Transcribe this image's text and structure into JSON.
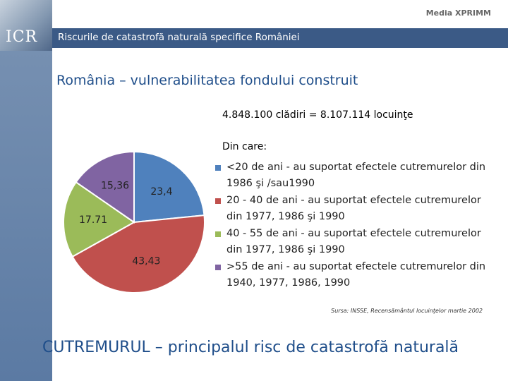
{
  "header": {
    "title": "Riscurile de catastrofă naturală specifice României",
    "logo": "ICR",
    "brand": "Media XPRIMM"
  },
  "heading": "România – vulnerabilitatea fondului construit",
  "summary": "4.848.100 clădiri = 8.107.114 locuinţe",
  "chart_data": {
    "type": "pie",
    "legend_title": "Din care:",
    "categories": [
      "<20 de ani - au suportat efectele cutremurelor din 1986 şi /sau1990",
      "20 - 40 de ani - au suportat efectele cutremurelor din 1977, 1986 şi 1990",
      "40 - 55 de ani - au suportat efectele cutremurelor din 1977, 1986 şi 1990",
      ">55 de ani - au suportat efectele cutremurelor din 1940, 1977, 1986, 1990"
    ],
    "values": [
      23.4,
      43.43,
      17.71,
      15.36
    ],
    "value_labels": [
      "23,4",
      "43,43",
      "17.71",
      "15,36"
    ],
    "colors": [
      "#4f81bd",
      "#c0504d",
      "#9bbb59",
      "#8064a2"
    ]
  },
  "source": "Sursa: INSSE, Recensământul locuinţelor martie 2002",
  "footer": "CUTREMURUL – principalul risc de catastrofă naturală"
}
